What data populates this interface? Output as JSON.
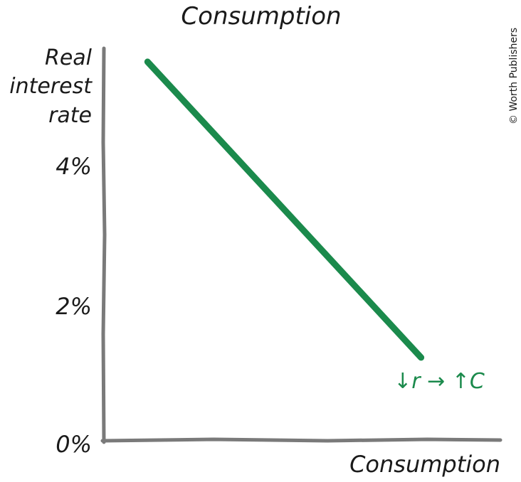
{
  "chart_data": {
    "type": "line",
    "title": "Consumption",
    "xlabel": "Consumption",
    "ylabel_lines": [
      "Real",
      "interest",
      "rate"
    ],
    "y_ticks": [
      {
        "value": 0,
        "label": "0%"
      },
      {
        "value": 2,
        "label": "2%"
      },
      {
        "value": 4,
        "label": "4%"
      }
    ],
    "ylim": [
      0,
      5.7
    ],
    "x_ticks_shown": false,
    "series": [
      {
        "values": [
          {
            "x": 0.11,
            "y": 5.5
          },
          {
            "x": 0.8,
            "y": 1.2
          }
        ]
      }
    ],
    "annotation": "↓r → ↑C",
    "grid": false,
    "colors": {
      "curve": "#1b8a4c",
      "axis": "#7a7a7a",
      "text": "#1a1a1a"
    }
  },
  "copyright": "© Worth Publishers"
}
